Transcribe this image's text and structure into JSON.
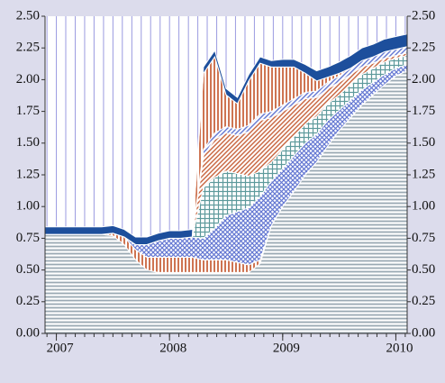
{
  "chart_data": {
    "type": "stacked_area",
    "x": [
      2006.9,
      2007.0,
      2007.1,
      2007.2,
      2007.3,
      2007.4,
      2007.5,
      2007.6,
      2007.7,
      2007.8,
      2007.9,
      2008.0,
      2008.1,
      2008.2,
      2008.3,
      2008.4,
      2008.5,
      2008.6,
      2008.7,
      2008.8,
      2008.9,
      2009.0,
      2009.1,
      2009.2,
      2009.3,
      2009.4,
      2009.5,
      2009.6,
      2009.7,
      2009.8,
      2009.9,
      2010.0,
      2010.1
    ],
    "series": [
      {
        "color": "#9aa9b3",
        "pattern": "hstripes",
        "values": [
          0.78,
          0.78,
          0.78,
          0.78,
          0.78,
          0.78,
          0.77,
          0.7,
          0.58,
          0.5,
          0.48,
          0.48,
          0.48,
          0.48,
          0.48,
          0.48,
          0.48,
          0.48,
          0.48,
          0.55,
          0.85,
          1.0,
          1.12,
          1.25,
          1.35,
          1.48,
          1.6,
          1.7,
          1.8,
          1.88,
          1.96,
          2.03,
          2.07
        ]
      },
      {
        "color": "#c8653f",
        "pattern": "vstripes",
        "values": [
          0,
          0,
          0,
          0,
          0,
          0,
          0.02,
          0.06,
          0.08,
          0.1,
          0.12,
          0.12,
          0.12,
          0.12,
          0.1,
          0.1,
          0.1,
          0.08,
          0.06,
          0.03,
          0,
          0,
          0,
          0,
          0,
          0,
          0,
          0,
          0,
          0,
          0,
          0,
          0
        ]
      },
      {
        "color": "#6478d2",
        "pattern": "crosshatch",
        "values": [
          0,
          0,
          0,
          0,
          0,
          0,
          0,
          0,
          0.04,
          0.1,
          0.13,
          0.15,
          0.15,
          0.16,
          0.17,
          0.25,
          0.35,
          0.4,
          0.45,
          0.5,
          0.35,
          0.3,
          0.28,
          0.25,
          0.22,
          0.2,
          0.16,
          0.14,
          0.12,
          0.1,
          0.08,
          0.06,
          0.05
        ]
      },
      {
        "color": "#5e9a9c",
        "pattern": "grid",
        "values": [
          0,
          0,
          0,
          0,
          0,
          0,
          0,
          0,
          0,
          0,
          0,
          0,
          0,
          0,
          0.4,
          0.4,
          0.35,
          0.3,
          0.25,
          0.2,
          0.15,
          0.15,
          0.15,
          0.15,
          0.14,
          0.13,
          0.12,
          0.12,
          0.12,
          0.11,
          0.1,
          0.08,
          0.07
        ]
      },
      {
        "color": "#c8653f",
        "pattern": "diagonal",
        "values": [
          0,
          0,
          0,
          0,
          0,
          0,
          0,
          0,
          0,
          0,
          0,
          0,
          0,
          0,
          0.25,
          0.3,
          0.3,
          0.3,
          0.35,
          0.4,
          0.35,
          0.3,
          0.25,
          0.2,
          0.15,
          0.12,
          0.1,
          0.08,
          0.06,
          0.04,
          0.03,
          0.02,
          0.02
        ]
      },
      {
        "color": "#6478d2",
        "pattern": "diagonal",
        "values": [
          0,
          0,
          0,
          0,
          0,
          0,
          0,
          0,
          0,
          0,
          0,
          0,
          0,
          0,
          0.05,
          0.05,
          0.05,
          0.05,
          0.05,
          0.05,
          0.05,
          0.05,
          0.05,
          0.05,
          0.05,
          0.05,
          0.05,
          0.05,
          0.05,
          0.05,
          0.05,
          0.05,
          0.05
        ]
      },
      {
        "color": "#c8653f",
        "pattern": "vstripes",
        "values": [
          0,
          0,
          0,
          0,
          0,
          0,
          0,
          0,
          0,
          0,
          0,
          0,
          0,
          0,
          0.6,
          0.6,
          0.25,
          0.2,
          0.35,
          0.4,
          0.35,
          0.3,
          0.25,
          0.15,
          0.08,
          0.04,
          0.02,
          0,
          0,
          0,
          0,
          0,
          0
        ]
      },
      {
        "color": "#1d4f9c",
        "pattern": "solid",
        "values": [
          0.06,
          0.06,
          0.06,
          0.06,
          0.06,
          0.06,
          0.06,
          0.06,
          0.06,
          0.06,
          0.06,
          0.06,
          0.06,
          0.06,
          0.05,
          0.05,
          0.05,
          0.05,
          0.05,
          0.05,
          0.05,
          0.06,
          0.06,
          0.07,
          0.08,
          0.08,
          0.09,
          0.1,
          0.1,
          0.1,
          0.1,
          0.1,
          0.1
        ]
      }
    ],
    "xlim": [
      2006.9,
      2010.1
    ],
    "xticks": [
      2007,
      2008,
      2009,
      2010
    ],
    "xminorticks": [
      2006.917,
      2007,
      2007.083,
      2007.167,
      2007.25,
      2007.333,
      2007.417,
      2007.5,
      2007.583,
      2007.667,
      2007.75,
      2007.833,
      2007.917,
      2008,
      2008.083,
      2008.167,
      2008.25,
      2008.333,
      2008.417,
      2008.5,
      2008.583,
      2008.667,
      2008.75,
      2008.833,
      2008.917,
      2009,
      2009.083,
      2009.167,
      2009.25,
      2009.333,
      2009.417,
      2009.5,
      2009.583,
      2009.667,
      2009.75,
      2009.833,
      2009.917,
      2010,
      2010.083
    ],
    "ylim": [
      0,
      2.5
    ],
    "yticks": [
      {
        "value": 0,
        "label": "0.00"
      },
      {
        "value": 0.25,
        "label": "0.25"
      },
      {
        "value": 0.5,
        "label": "0.50"
      },
      {
        "value": 0.75,
        "label": "0.75"
      },
      {
        "value": 1,
        "label": "1.00"
      },
      {
        "value": 1.25,
        "label": "1.25"
      },
      {
        "value": 1.5,
        "label": "1.50"
      },
      {
        "value": 1.75,
        "label": "1.75"
      },
      {
        "value": 2,
        "label": "2.00"
      },
      {
        "value": 2.25,
        "label": "2.25"
      },
      {
        "value": 2.5,
        "label": "2.50"
      }
    ],
    "grid": true,
    "grid_color": "#9a9ae0",
    "background": "#dcdcec"
  }
}
